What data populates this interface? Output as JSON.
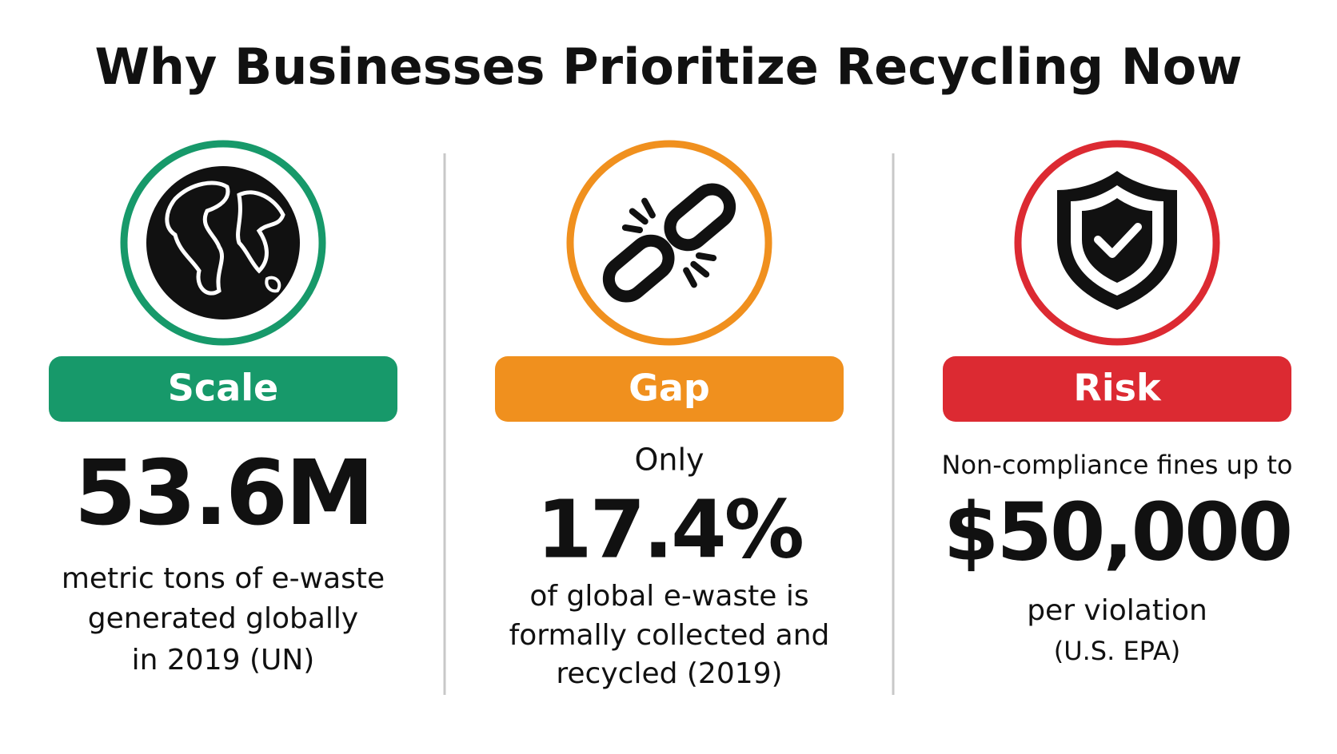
{
  "title": "Why Businesses Prioritize Recycling Now",
  "panels": [
    {
      "label": "Scale",
      "color": "#17996a",
      "stat": "53.6M",
      "description": [
        "metric tons of e-waste",
        "generated globally",
        "in 2019 (UN)"
      ]
    },
    {
      "label": "Gap",
      "color": "#f0901e",
      "lead": "Only",
      "stat": "17.4%",
      "description": [
        "of global e-waste is",
        "formally collected and",
        "recycled (2019)"
      ]
    },
    {
      "label": "Risk",
      "color": "#dc2a32",
      "lead": "Non-compliance fines up to",
      "stat": "$50,000",
      "description": [
        "per violation",
        "(U.S. EPA)"
      ]
    }
  ]
}
